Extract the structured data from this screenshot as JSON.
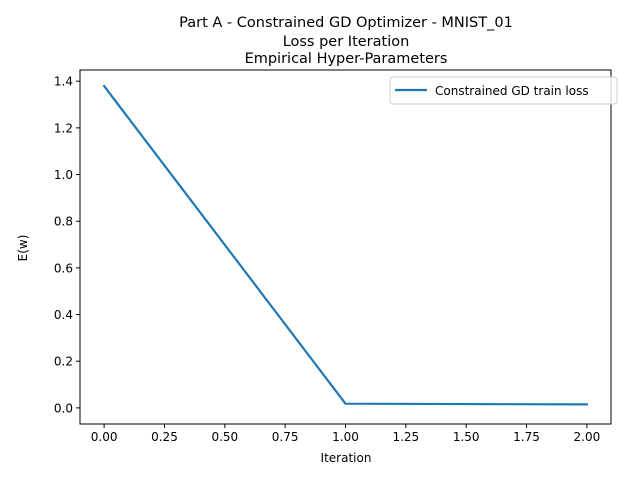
{
  "chart_data": {
    "type": "line",
    "title_lines": [
      "Part A - Constrained GD Optimizer - MNIST_01",
      "Loss per Iteration",
      "Empirical Hyper-Parameters"
    ],
    "xlabel": "Iteration",
    "ylabel": "E(w)",
    "xlim": [
      -0.1,
      2.1
    ],
    "ylim": [
      -0.069,
      1.448
    ],
    "x_ticks": [
      "0.00",
      "0.25",
      "0.50",
      "0.75",
      "1.00",
      "1.25",
      "1.50",
      "1.75",
      "2.00"
    ],
    "y_ticks": [
      "0.0",
      "0.2",
      "0.4",
      "0.6",
      "0.8",
      "1.0",
      "1.2",
      "1.4"
    ],
    "grid": false,
    "legend_position": "upper right",
    "series": [
      {
        "name": "Constrained GD train loss",
        "color": "#1f77b4",
        "x": [
          0,
          1,
          2
        ],
        "y": [
          1.379,
          0.018,
          0.015
        ]
      }
    ]
  }
}
